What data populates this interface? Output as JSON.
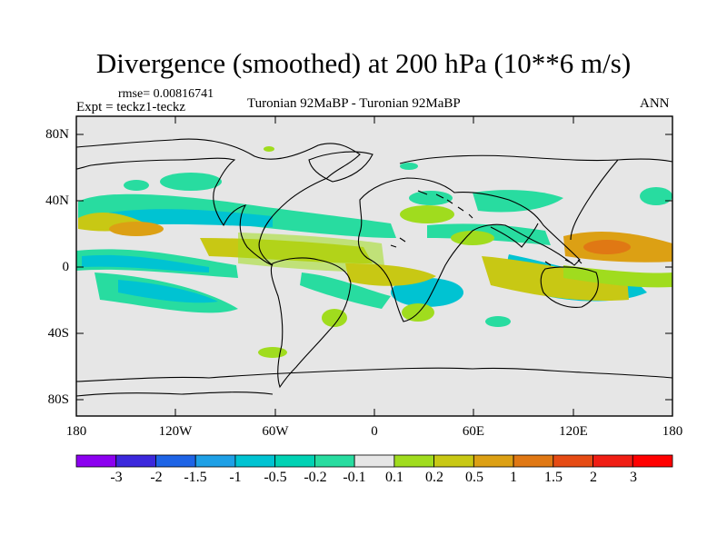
{
  "title": "Divergence (smoothed) at 200 hPa (10**6 m/s)",
  "stats": {
    "rmse_label": "rmse= 0.00816741"
  },
  "experiment_label": "Expt = teckz1-teckz",
  "period_label": "Turonian  92MaBP - Turonian  92MaBP",
  "season_label": "ANN",
  "axes": {
    "x_ticks": [
      "180",
      "120W",
      "60W",
      "0",
      "60E",
      "120E",
      "180"
    ],
    "y_ticks": [
      "80N",
      "40N",
      "0",
      "40S",
      "80S"
    ]
  },
  "colorbar": {
    "labels": [
      "-3",
      "-2",
      "-1.5",
      "-1",
      "-0.5",
      "-0.2",
      "-0.1",
      "0.1",
      "0.2",
      "0.5",
      "1",
      "1.5",
      "2",
      "3"
    ],
    "colors": [
      "#8c00f0",
      "#3c28dc",
      "#1e64e6",
      "#1ea0e6",
      "#00c3d2",
      "#00d2b4",
      "#28dca0",
      "#e6e6e6",
      "#a0dc1e",
      "#c8c814",
      "#dca014",
      "#e07814",
      "#e64b14",
      "#f01e14",
      "#ff0000"
    ]
  },
  "map_colors": {
    "background": "#e6e6e6",
    "neg_weak": "#28dca0",
    "neg_mid": "#00c3d2",
    "pos_weak": "#a0dc1e",
    "pos_mid": "#c8c814",
    "pos_strong": "#dca014",
    "pos_max": "#e07814"
  }
}
